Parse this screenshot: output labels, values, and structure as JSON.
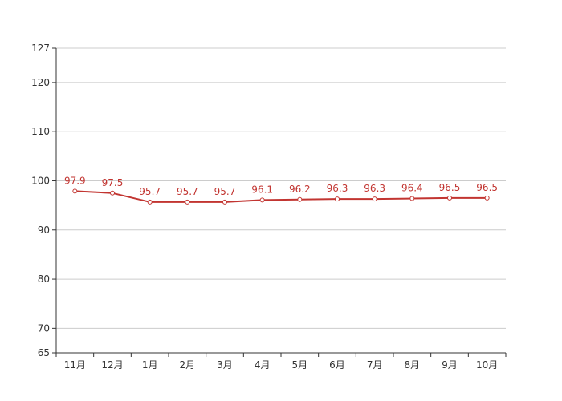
{
  "chart_data": {
    "type": "line",
    "title": "",
    "xlabel": "",
    "ylabel": "",
    "categories": [
      "11月",
      "12月",
      "1月",
      "2月",
      "3月",
      "4月",
      "5月",
      "6月",
      "7月",
      "8月",
      "9月",
      "10月"
    ],
    "series": [
      {
        "values": [
          97.9,
          97.5,
          95.7,
          95.7,
          95.7,
          96.1,
          96.2,
          96.3,
          96.3,
          96.4,
          96.5,
          96.5
        ]
      }
    ],
    "ylim": [
      65,
      127
    ],
    "yticks": [
      65,
      70,
      80,
      90,
      100,
      110,
      120,
      127
    ],
    "grid": true,
    "data_labels": true,
    "colors": {
      "line": "#c23531",
      "grid": "#cccccc",
      "axis": "#333333"
    }
  }
}
